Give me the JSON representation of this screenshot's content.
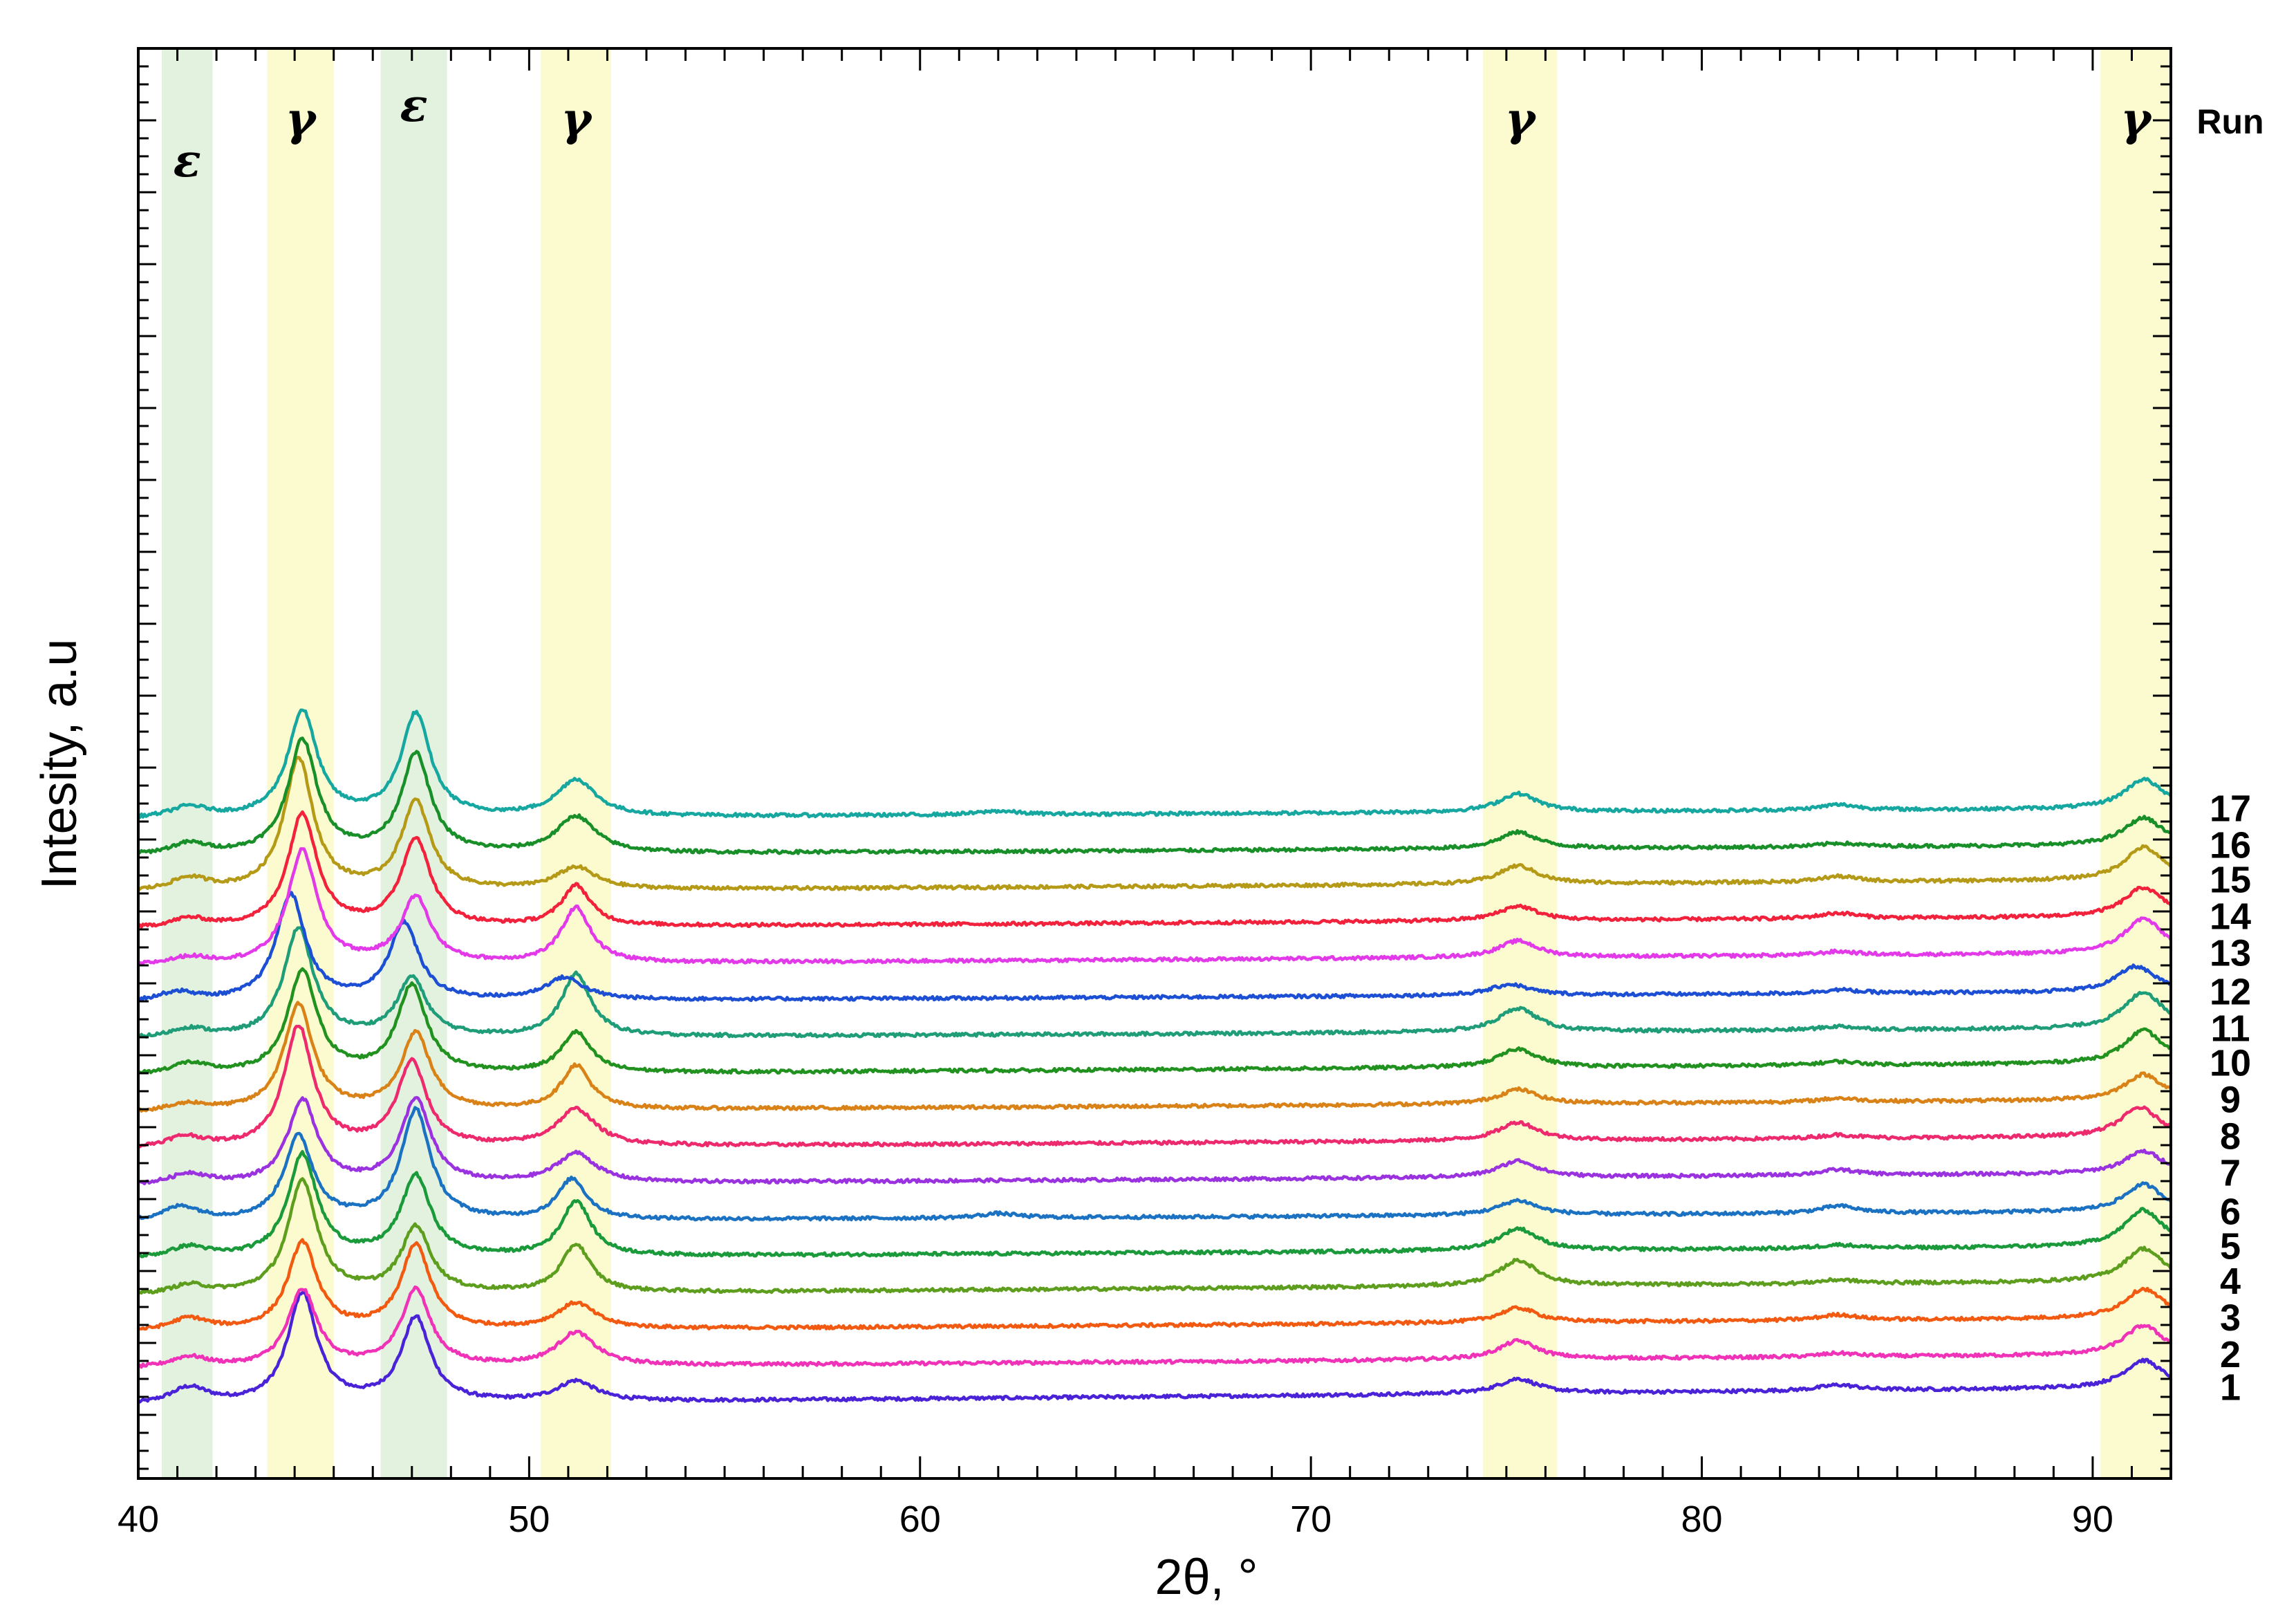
{
  "chart_data": {
    "type": "line",
    "title": "",
    "xlabel": "2θ, °",
    "ylabel": "Intesity, a.u",
    "xlim": [
      40,
      92
    ],
    "x_ticks": [
      40,
      50,
      60,
      70,
      80,
      90
    ],
    "x_tick_labels": [
      "40",
      "50",
      "60",
      "70",
      "80",
      "90"
    ],
    "grid": false,
    "run_header": "Run",
    "phase_bands": [
      {
        "label": "ε",
        "x_from": 40.6,
        "x_to": 41.9,
        "color": "#e3f2df"
      },
      {
        "label": "γ",
        "x_from": 43.3,
        "x_to": 45.0,
        "color": "#fbfbcf"
      },
      {
        "label": "ε",
        "x_from": 46.2,
        "x_to": 47.9,
        "color": "#e3f2df"
      },
      {
        "label": "γ",
        "x_from": 50.3,
        "x_to": 52.1,
        "color": "#fbfbcf"
      },
      {
        "label": "γ",
        "x_from": 74.4,
        "x_to": 76.3,
        "color": "#fbfbcf"
      },
      {
        "label": "γ",
        "x_from": 90.2,
        "x_to": 92.0,
        "color": "#fbfbcf"
      }
    ],
    "series": [
      {
        "name": "1",
        "color": "#4a22d8",
        "baseline": 0.6,
        "ramp": 0.5,
        "peaks": [
          {
            "x": 41.3,
            "h": 0.45
          },
          {
            "x": 44.2,
            "h": 3.0
          },
          {
            "x": 47.1,
            "h": 2.3
          },
          {
            "x": 51.2,
            "h": 0.55
          },
          {
            "x": 75.3,
            "h": 0.4
          },
          {
            "x": 83.5,
            "h": 0.15
          },
          {
            "x": 91.3,
            "h": 0.75
          }
        ]
      },
      {
        "name": "2",
        "color": "#f032b8",
        "baseline": 1.6,
        "ramp": 0.4,
        "peaks": [
          {
            "x": 41.3,
            "h": 0.3
          },
          {
            "x": 44.2,
            "h": 2.1
          },
          {
            "x": 47.1,
            "h": 2.1
          },
          {
            "x": 51.2,
            "h": 0.9
          },
          {
            "x": 75.3,
            "h": 0.5
          },
          {
            "x": 83.5,
            "h": 0.1
          },
          {
            "x": 91.3,
            "h": 0.8
          }
        ]
      },
      {
        "name": "3",
        "color": "#f25a12",
        "baseline": 2.6,
        "ramp": 0.4,
        "peaks": [
          {
            "x": 41.3,
            "h": 0.35
          },
          {
            "x": 44.2,
            "h": 2.4
          },
          {
            "x": 47.1,
            "h": 2.3
          },
          {
            "x": 51.2,
            "h": 0.7
          },
          {
            "x": 75.3,
            "h": 0.4
          },
          {
            "x": 83.5,
            "h": 0.15
          },
          {
            "x": 91.3,
            "h": 0.8
          }
        ]
      },
      {
        "name": "4",
        "color": "#5e9e1e",
        "baseline": 3.6,
        "ramp": 0.4,
        "peaks": [
          {
            "x": 41.3,
            "h": 0.25
          },
          {
            "x": 44.2,
            "h": 3.1
          },
          {
            "x": 47.1,
            "h": 1.8
          },
          {
            "x": 51.2,
            "h": 1.3
          },
          {
            "x": 75.3,
            "h": 0.7
          },
          {
            "x": 83.5,
            "h": 0.1
          },
          {
            "x": 91.3,
            "h": 0.9
          }
        ]
      },
      {
        "name": "5",
        "color": "#1a9a3a",
        "baseline": 4.6,
        "ramp": 0.35,
        "peaks": [
          {
            "x": 41.3,
            "h": 0.3
          },
          {
            "x": 44.2,
            "h": 2.8
          },
          {
            "x": 47.1,
            "h": 2.2
          },
          {
            "x": 51.2,
            "h": 1.5
          },
          {
            "x": 75.3,
            "h": 0.6
          },
          {
            "x": 83.5,
            "h": 0.1
          },
          {
            "x": 91.3,
            "h": 1.0
          }
        ]
      },
      {
        "name": "6",
        "color": "#1c72c2",
        "baseline": 5.6,
        "ramp": 0.3,
        "peaks": [
          {
            "x": 41.1,
            "h": 0.4
          },
          {
            "x": 44.1,
            "h": 2.3
          },
          {
            "x": 47.1,
            "h": 3.0
          },
          {
            "x": 51.1,
            "h": 1.1
          },
          {
            "x": 62.0,
            "h": 0.12
          },
          {
            "x": 75.3,
            "h": 0.4
          },
          {
            "x": 83.5,
            "h": 0.2
          },
          {
            "x": 91.3,
            "h": 0.75
          }
        ]
      },
      {
        "name": "7",
        "color": "#9a32e0",
        "baseline": 6.6,
        "ramp": 0.35,
        "peaks": [
          {
            "x": 41.3,
            "h": 0.3
          },
          {
            "x": 44.2,
            "h": 2.3
          },
          {
            "x": 47.1,
            "h": 2.3
          },
          {
            "x": 51.2,
            "h": 0.8
          },
          {
            "x": 75.3,
            "h": 0.45
          },
          {
            "x": 83.5,
            "h": 0.15
          },
          {
            "x": 91.3,
            "h": 0.6
          }
        ]
      },
      {
        "name": "8",
        "color": "#ee2a6e",
        "baseline": 7.6,
        "ramp": 0.35,
        "peaks": [
          {
            "x": 41.2,
            "h": 0.3
          },
          {
            "x": 44.1,
            "h": 3.3
          },
          {
            "x": 47.0,
            "h": 2.3
          },
          {
            "x": 51.2,
            "h": 1.0
          },
          {
            "x": 75.3,
            "h": 0.5
          },
          {
            "x": 83.5,
            "h": 0.1
          },
          {
            "x": 91.2,
            "h": 0.8
          }
        ]
      },
      {
        "name": "9",
        "color": "#d98218",
        "baseline": 8.6,
        "ramp": 0.35,
        "peaks": [
          {
            "x": 41.3,
            "h": 0.2
          },
          {
            "x": 44.1,
            "h": 2.9
          },
          {
            "x": 47.1,
            "h": 2.1
          },
          {
            "x": 51.2,
            "h": 1.2
          },
          {
            "x": 75.3,
            "h": 0.4
          },
          {
            "x": 83.5,
            "h": 0.1
          },
          {
            "x": 91.3,
            "h": 0.7
          }
        ]
      },
      {
        "name": "10",
        "color": "#21921f",
        "baseline": 9.6,
        "ramp": 0.35,
        "peaks": [
          {
            "x": 41.3,
            "h": 0.3
          },
          {
            "x": 44.2,
            "h": 2.8
          },
          {
            "x": 47.0,
            "h": 2.4
          },
          {
            "x": 51.2,
            "h": 1.1
          },
          {
            "x": 75.3,
            "h": 0.5
          },
          {
            "x": 83.5,
            "h": 0.1
          },
          {
            "x": 91.3,
            "h": 0.9
          }
        ]
      },
      {
        "name": "11",
        "color": "#1f9c78",
        "baseline": 10.6,
        "ramp": 0.3,
        "peaks": [
          {
            "x": 41.3,
            "h": 0.25
          },
          {
            "x": 44.1,
            "h": 3.0
          },
          {
            "x": 47.0,
            "h": 1.6
          },
          {
            "x": 51.2,
            "h": 1.7
          },
          {
            "x": 75.3,
            "h": 0.65
          },
          {
            "x": 83.5,
            "h": 0.1
          },
          {
            "x": 91.3,
            "h": 1.0
          }
        ]
      },
      {
        "name": "12",
        "color": "#1c4fd4",
        "baseline": 11.6,
        "ramp": 0.3,
        "peaks": [
          {
            "x": 41.0,
            "h": 0.25
          },
          {
            "x": 43.9,
            "h": 2.9
          },
          {
            "x": 46.8,
            "h": 2.1
          },
          {
            "x": 50.9,
            "h": 0.6
          },
          {
            "x": 75.1,
            "h": 0.3
          },
          {
            "x": 83.5,
            "h": 0.1
          },
          {
            "x": 91.1,
            "h": 0.7
          }
        ]
      },
      {
        "name": "13",
        "color": "#e23ae8",
        "baseline": 12.6,
        "ramp": 0.35,
        "peaks": [
          {
            "x": 41.3,
            "h": 0.2
          },
          {
            "x": 44.2,
            "h": 3.1
          },
          {
            "x": 47.1,
            "h": 1.8
          },
          {
            "x": 51.2,
            "h": 1.5
          },
          {
            "x": 75.3,
            "h": 0.45
          },
          {
            "x": 83.5,
            "h": 0.1
          },
          {
            "x": 91.3,
            "h": 0.95
          }
        ]
      },
      {
        "name": "14",
        "color": "#f2213c",
        "baseline": 13.6,
        "ramp": 0.35,
        "peaks": [
          {
            "x": 41.3,
            "h": 0.25
          },
          {
            "x": 44.2,
            "h": 3.1
          },
          {
            "x": 47.1,
            "h": 2.4
          },
          {
            "x": 51.2,
            "h": 1.1
          },
          {
            "x": 75.3,
            "h": 0.4
          },
          {
            "x": 83.5,
            "h": 0.15
          },
          {
            "x": 91.3,
            "h": 0.8
          }
        ]
      },
      {
        "name": "15",
        "color": "#b59a18",
        "baseline": 14.6,
        "ramp": 0.35,
        "peaks": [
          {
            "x": 41.3,
            "h": 0.35
          },
          {
            "x": 44.1,
            "h": 3.6
          },
          {
            "x": 47.1,
            "h": 2.4
          },
          {
            "x": 51.2,
            "h": 0.6
          },
          {
            "x": 75.3,
            "h": 0.5
          },
          {
            "x": 83.5,
            "h": 0.15
          },
          {
            "x": 91.3,
            "h": 0.9
          }
        ]
      },
      {
        "name": "16",
        "color": "#188f28",
        "baseline": 15.6,
        "ramp": 0.3,
        "peaks": [
          {
            "x": 41.3,
            "h": 0.3
          },
          {
            "x": 44.2,
            "h": 3.1
          },
          {
            "x": 47.1,
            "h": 2.7
          },
          {
            "x": 51.2,
            "h": 1.0
          },
          {
            "x": 75.3,
            "h": 0.45
          },
          {
            "x": 83.5,
            "h": 0.1
          },
          {
            "x": 91.3,
            "h": 0.75
          }
        ]
      },
      {
        "name": "17",
        "color": "#16a8a0",
        "baseline": 16.6,
        "ramp": 0.3,
        "peaks": [
          {
            "x": 41.3,
            "h": 0.3
          },
          {
            "x": 44.2,
            "h": 2.9
          },
          {
            "x": 47.1,
            "h": 2.8
          },
          {
            "x": 51.2,
            "h": 1.0
          },
          {
            "x": 62.0,
            "h": 0.1
          },
          {
            "x": 75.3,
            "h": 0.5
          },
          {
            "x": 83.5,
            "h": 0.15
          },
          {
            "x": 91.3,
            "h": 0.8
          }
        ]
      }
    ]
  }
}
